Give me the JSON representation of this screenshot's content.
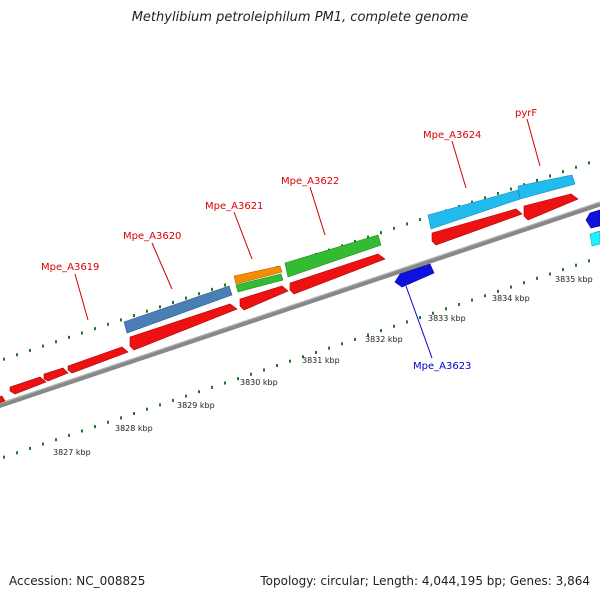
{
  "title": "Methylibium petroleiphilum PM1, complete genome",
  "footer": {
    "accession": "Accession: NC_008825",
    "summary": "Topology: circular; Length: 4,044,195 bp; Genes: 3,864"
  },
  "colors": {
    "backbone": "#888888",
    "cds": "#ee1111",
    "label_red": "#dd0000",
    "label_blue": "#0000cc",
    "dots": "#227722"
  },
  "scale_labels": [
    "3827 kbp",
    "3828 kbp",
    "3829 kbp",
    "3830 kbp",
    "3831 kbp",
    "3832 kbp",
    "3833 kbp",
    "3834 kbp",
    "3835 kbp"
  ],
  "gene_labels": [
    {
      "text": "Mpe_A3619",
      "color": "red"
    },
    {
      "text": "Mpe_A3620",
      "color": "red"
    },
    {
      "text": "Mpe_A3621",
      "color": "red"
    },
    {
      "text": "Mpe_A3622",
      "color": "red"
    },
    {
      "text": "Mpe_A3623",
      "color": "blue"
    },
    {
      "text": "Mpe_A3624",
      "color": "red"
    },
    {
      "text": "pyrF",
      "color": "red"
    }
  ]
}
